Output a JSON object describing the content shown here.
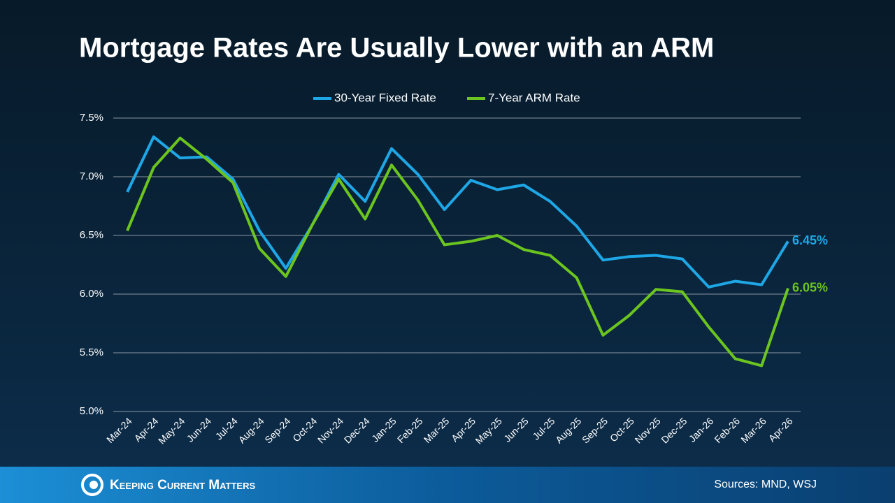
{
  "chart_data": {
    "type": "line",
    "title": "Mortgage Rates Are Usually Lower with an ARM",
    "categories": [
      "Mar-24",
      "Apr-24",
      "May-24",
      "Jun-24",
      "Jul-24",
      "Aug-24",
      "Sep-24",
      "Oct-24",
      "Nov-24",
      "Dec-24",
      "Jan-25",
      "Feb-25",
      "Mar-25",
      "Apr-25",
      "May-25",
      "Jun-25",
      "Jul-25",
      "Aug-25",
      "Sep-25",
      "Oct-25",
      "Nov-25",
      "Dec-25",
      "Jan-26",
      "Feb-26",
      "Mar-26",
      "Apr-26"
    ],
    "series": [
      {
        "name": "30-Year Fixed Rate",
        "color": "#1ea7e6",
        "values": [
          6.87,
          7.34,
          7.16,
          7.17,
          6.98,
          6.54,
          6.22,
          6.59,
          7.02,
          6.79,
          7.24,
          7.02,
          6.72,
          6.97,
          6.89,
          6.93,
          6.79,
          6.58,
          6.29,
          6.32,
          6.33,
          6.3,
          6.06,
          6.11,
          6.08,
          6.45
        ],
        "value_labels": [
          null,
          null,
          null,
          null,
          null,
          null,
          null,
          null,
          null,
          null,
          null,
          null,
          null,
          null,
          null,
          null,
          null,
          null,
          null,
          null,
          null,
          null,
          null,
          null,
          null,
          "6.45%"
        ]
      },
      {
        "name": "7-Year ARM Rate",
        "color": "#6cc51e",
        "values": [
          6.54,
          7.08,
          7.33,
          7.15,
          6.95,
          6.39,
          6.15,
          6.59,
          6.98,
          6.64,
          7.1,
          6.8,
          6.42,
          6.45,
          6.5,
          6.38,
          6.33,
          6.14,
          5.65,
          5.82,
          6.04,
          6.02,
          5.72,
          5.45,
          5.39,
          6.05
        ],
        "value_labels": [
          null,
          null,
          null,
          null,
          null,
          null,
          null,
          null,
          null,
          null,
          null,
          null,
          null,
          null,
          null,
          null,
          null,
          null,
          null,
          null,
          null,
          null,
          null,
          null,
          null,
          "6.05%"
        ]
      }
    ],
    "ylim": [
      5.0,
      7.5
    ],
    "yticks": [
      {
        "value": 5.0,
        "label": "5.0%"
      },
      {
        "value": 5.5,
        "label": "5.5%"
      },
      {
        "value": 6.0,
        "label": "6.0%"
      },
      {
        "value": 6.5,
        "label": "6.5%"
      },
      {
        "value": 7.0,
        "label": "7.0%"
      },
      {
        "value": 7.5,
        "label": "7.5%"
      }
    ],
    "grid": true,
    "legend": "top"
  },
  "footer": {
    "brand": "Keeping Current Matters",
    "source": "Sources: MND, WSJ"
  }
}
